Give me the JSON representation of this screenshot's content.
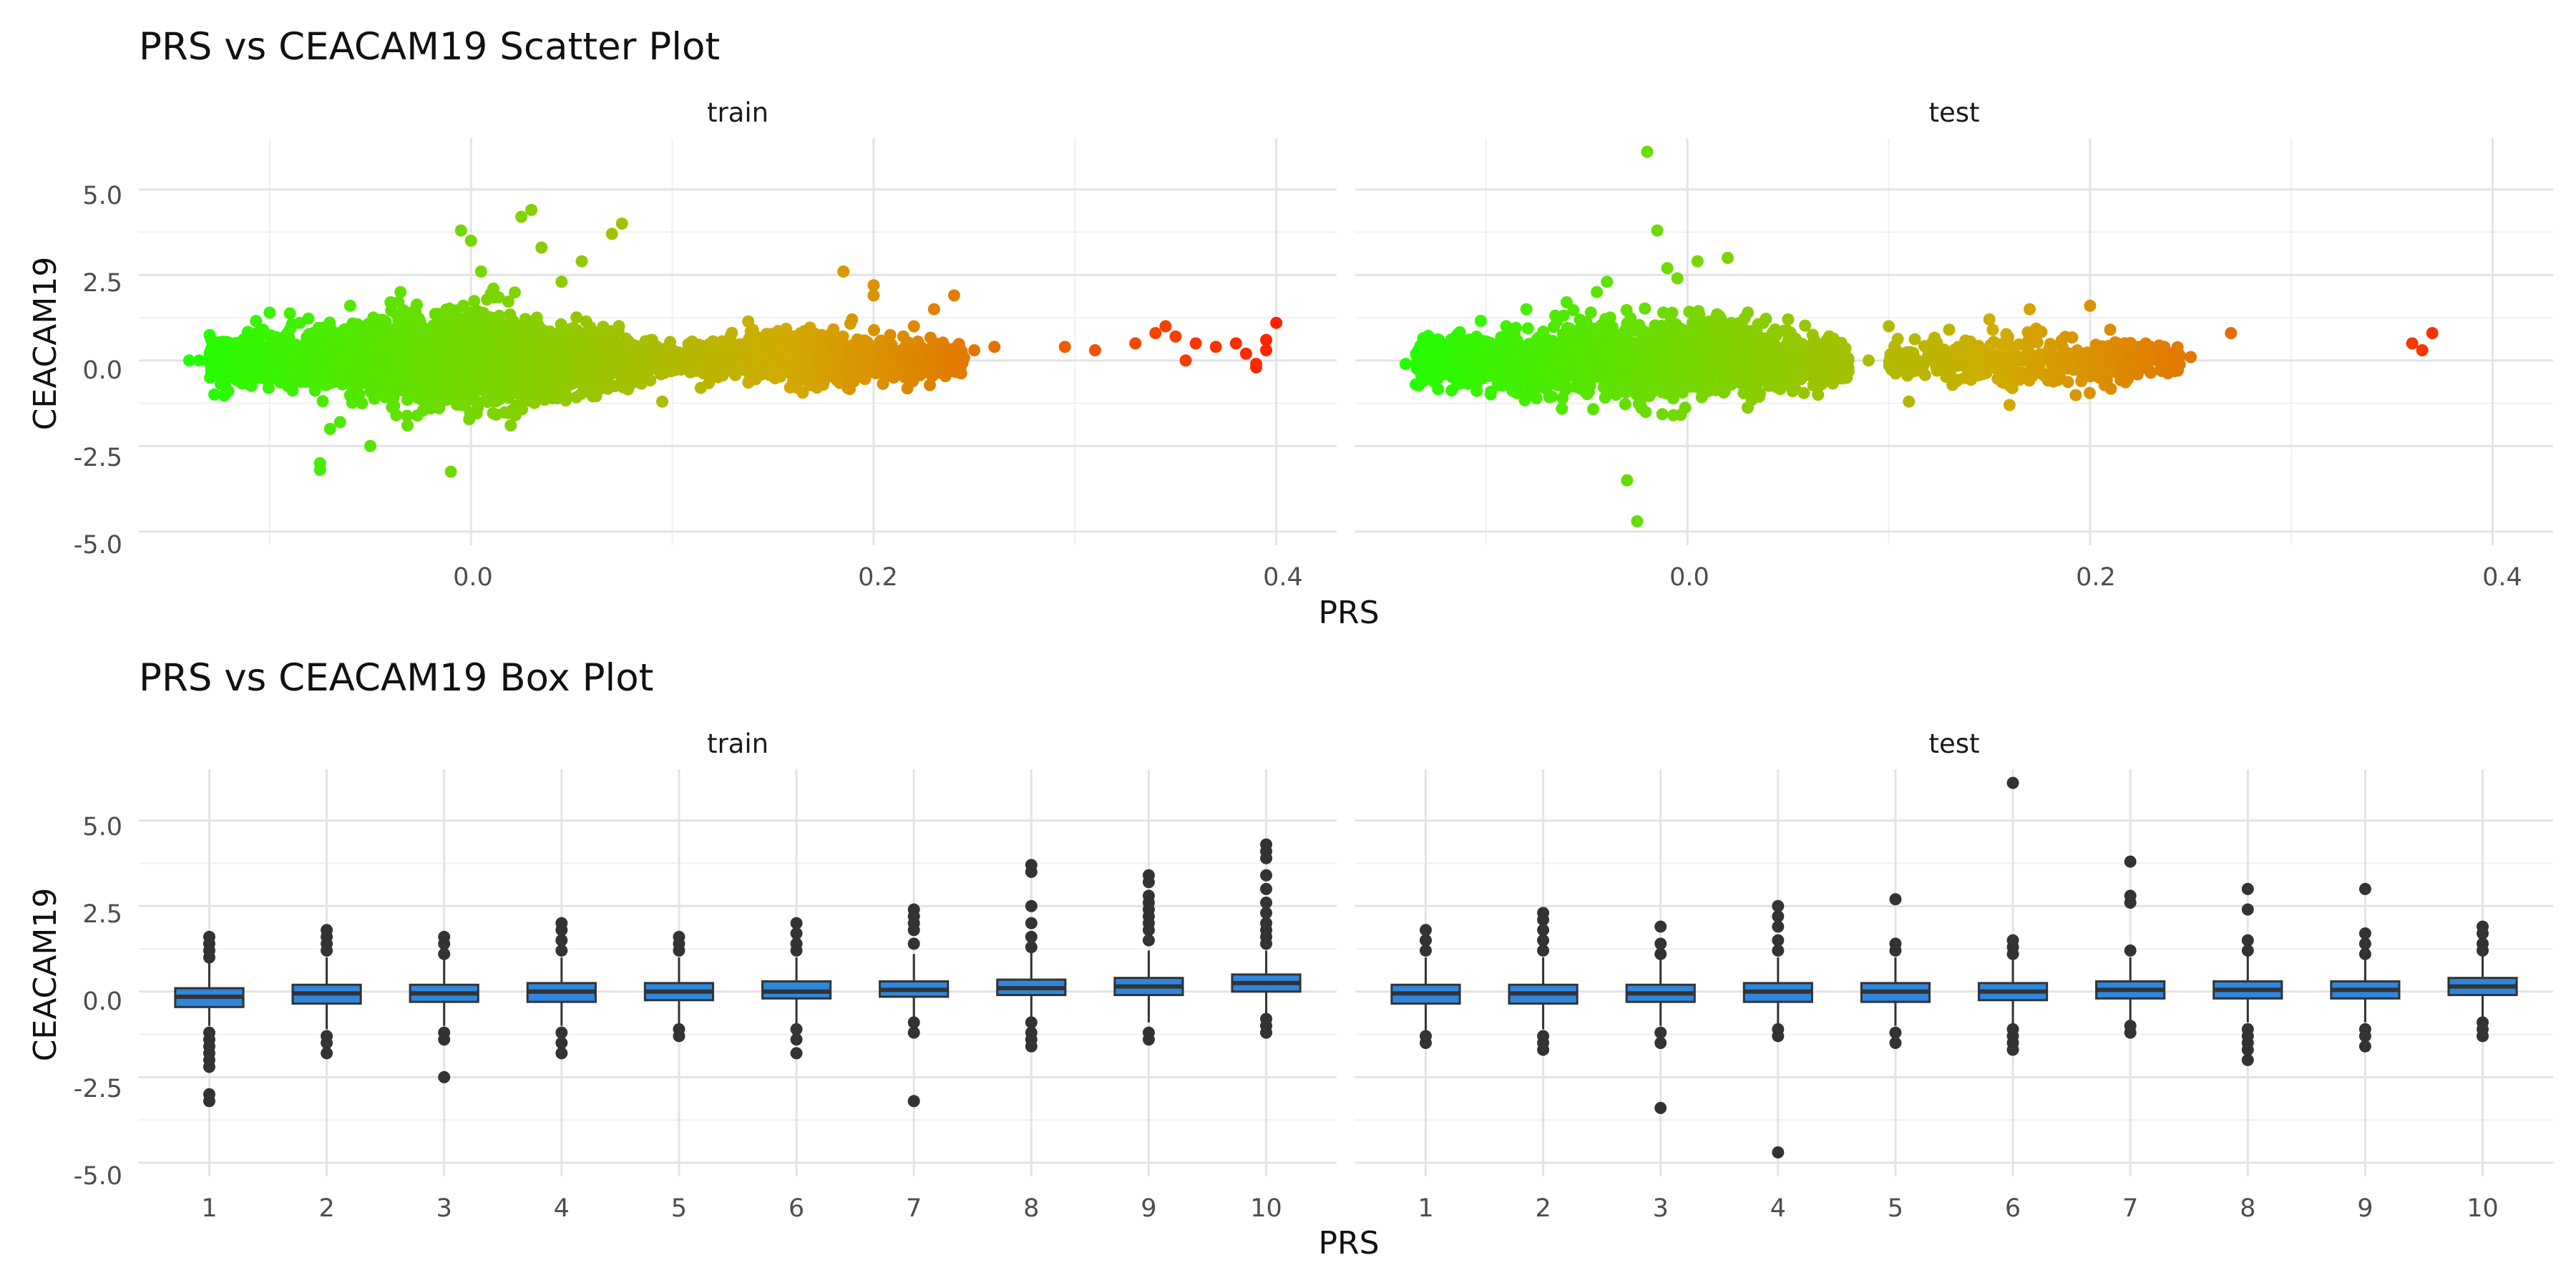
{
  "chart_data": [
    {
      "type": "scatter",
      "title": "PRS vs CEACAM19 Scatter Plot",
      "xlabel": "PRS",
      "ylabel": "CEACAM19",
      "xlim": [
        -0.165,
        0.43
      ],
      "ylim": [
        -5.4,
        6.5
      ],
      "xticks": [
        "0.0",
        "0.2",
        "0.4"
      ],
      "yticks": [
        "5.0",
        "2.5",
        "0.0",
        "-2.5",
        "-5.0"
      ],
      "grid": true,
      "color_scale": {
        "low": "#22ff00",
        "high": "#ff2200"
      },
      "facets": [
        {
          "label": "train",
          "points": [
            [
              -0.14,
              0.0
            ],
            [
              -0.135,
              0.0
            ],
            [
              -0.12,
              -0.5
            ],
            [
              -0.115,
              -0.2
            ],
            [
              -0.1,
              1.4
            ],
            [
              -0.09,
              0.9
            ],
            [
              -0.085,
              1.1
            ],
            [
              -0.075,
              -3.0
            ],
            [
              -0.075,
              -3.2
            ],
            [
              -0.07,
              -2.0
            ],
            [
              -0.065,
              -1.8
            ],
            [
              -0.06,
              1.6
            ],
            [
              -0.05,
              -2.5
            ],
            [
              -0.04,
              1.7
            ],
            [
              -0.035,
              2.0
            ],
            [
              -0.02,
              -1.4
            ],
            [
              -0.01,
              -3.25
            ],
            [
              -0.005,
              3.8
            ],
            [
              0.0,
              3.5
            ],
            [
              0.005,
              2.6
            ],
            [
              0.01,
              1.9
            ],
            [
              0.025,
              4.2
            ],
            [
              0.03,
              4.4
            ],
            [
              0.035,
              3.3
            ],
            [
              0.045,
              2.3
            ],
            [
              0.055,
              2.9
            ],
            [
              0.07,
              3.7
            ],
            [
              0.075,
              4.0
            ],
            [
              0.09,
              0.6
            ],
            [
              0.095,
              -1.2
            ],
            [
              0.1,
              0.2
            ],
            [
              0.12,
              -0.4
            ],
            [
              0.14,
              0.9
            ],
            [
              0.16,
              -0.6
            ],
            [
              0.18,
              0.5
            ],
            [
              0.185,
              2.6
            ],
            [
              0.2,
              2.2
            ],
            [
              0.2,
              1.9
            ],
            [
              0.21,
              -0.5
            ],
            [
              0.22,
              1.0
            ],
            [
              0.23,
              1.5
            ],
            [
              0.24,
              1.9
            ],
            [
              0.25,
              0.3
            ],
            [
              0.26,
              0.4
            ],
            [
              0.295,
              0.4
            ],
            [
              0.31,
              0.3
            ],
            [
              0.33,
              0.5
            ],
            [
              0.34,
              0.8
            ],
            [
              0.345,
              1.0
            ],
            [
              0.35,
              0.7
            ],
            [
              0.355,
              0.0
            ],
            [
              0.36,
              0.5
            ],
            [
              0.37,
              0.4
            ],
            [
              0.38,
              0.5
            ],
            [
              0.385,
              0.2
            ],
            [
              0.39,
              -0.1
            ],
            [
              0.39,
              -0.2
            ],
            [
              0.395,
              0.6
            ],
            [
              0.4,
              1.1
            ],
            [
              0.395,
              0.3
            ]
          ],
          "clusters": [
            {
              "x": [
                -0.13,
                0.09
              ],
              "y": [
                -1.3,
                1.3
              ],
              "n": 2200
            },
            {
              "x": [
                -0.06,
                0.06
              ],
              "y": [
                -1.6,
                1.8
              ],
              "n": 900
            },
            {
              "x": [
                0.09,
                0.245
              ],
              "y": [
                -0.8,
                0.9
              ],
              "n": 1100
            }
          ]
        },
        {
          "label": "test",
          "points": [
            [
              -0.14,
              -0.1
            ],
            [
              -0.135,
              -0.7
            ],
            [
              -0.13,
              -0.3
            ],
            [
              -0.12,
              -0.4
            ],
            [
              -0.09,
              1.0
            ],
            [
              -0.08,
              1.5
            ],
            [
              -0.06,
              1.7
            ],
            [
              -0.045,
              2.0
            ],
            [
              -0.04,
              2.3
            ],
            [
              -0.03,
              -3.5
            ],
            [
              -0.025,
              -4.7
            ],
            [
              -0.02,
              6.1
            ],
            [
              -0.015,
              3.8
            ],
            [
              -0.01,
              2.7
            ],
            [
              -0.005,
              2.4
            ],
            [
              0.005,
              2.9
            ],
            [
              0.02,
              3.0
            ],
            [
              0.03,
              1.4
            ],
            [
              0.05,
              1.2
            ],
            [
              0.07,
              0.3
            ],
            [
              0.09,
              0.0
            ],
            [
              0.1,
              1.0
            ],
            [
              0.11,
              -1.2
            ],
            [
              0.13,
              0.9
            ],
            [
              0.15,
              1.2
            ],
            [
              0.16,
              -1.3
            ],
            [
              0.17,
              1.5
            ],
            [
              0.2,
              1.6
            ],
            [
              0.21,
              0.9
            ],
            [
              0.23,
              0.4
            ],
            [
              0.25,
              0.1
            ],
            [
              0.27,
              0.8
            ],
            [
              0.36,
              0.5
            ],
            [
              0.365,
              0.3
            ],
            [
              0.37,
              0.8
            ]
          ],
          "clusters": [
            {
              "x": [
                -0.135,
                0.08
              ],
              "y": [
                -1.3,
                1.3
              ],
              "n": 1400
            },
            {
              "x": [
                -0.06,
                0.03
              ],
              "y": [
                -1.6,
                1.7
              ],
              "n": 300
            },
            {
              "x": [
                0.1,
                0.245
              ],
              "y": [
                -0.9,
                0.9
              ],
              "n": 450
            }
          ]
        }
      ]
    },
    {
      "type": "box",
      "title": "PRS vs CEACAM19 Box Plot",
      "xlabel": "PRS",
      "ylabel": "CEACAM19",
      "ylim": [
        -5.4,
        6.5
      ],
      "categories": [
        "1",
        "2",
        "3",
        "4",
        "5",
        "6",
        "7",
        "8",
        "9",
        "10"
      ],
      "yticks": [
        "5.0",
        "2.5",
        "0.0",
        "-2.5",
        "-5.0"
      ],
      "grid": true,
      "box_color": "#2e86de",
      "facets": [
        {
          "label": "train",
          "boxes": [
            {
              "q1": -0.45,
              "median": -0.15,
              "q3": 0.1,
              "lower": -1.0,
              "upper": 0.85,
              "outliers": [
                1.6,
                1.4,
                1.2,
                1.0,
                -1.2,
                -1.4,
                -1.6,
                -1.8,
                -2.0,
                -2.2,
                -3.0,
                -3.2
              ]
            },
            {
              "q1": -0.35,
              "median": -0.05,
              "q3": 0.2,
              "lower": -1.1,
              "upper": 1.0,
              "outliers": [
                1.8,
                1.6,
                1.4,
                1.2,
                -1.3,
                -1.5,
                -1.8
              ]
            },
            {
              "q1": -0.3,
              "median": -0.05,
              "q3": 0.2,
              "lower": -1.0,
              "upper": 1.0,
              "outliers": [
                1.6,
                1.4,
                1.1,
                -1.2,
                -1.4,
                -2.5
              ]
            },
            {
              "q1": -0.3,
              "median": 0.0,
              "q3": 0.25,
              "lower": -1.0,
              "upper": 1.0,
              "outliers": [
                2.0,
                1.8,
                1.5,
                1.2,
                -1.2,
                -1.5,
                -1.8
              ]
            },
            {
              "q1": -0.25,
              "median": 0.0,
              "q3": 0.25,
              "lower": -1.0,
              "upper": 1.0,
              "outliers": [
                1.6,
                1.4,
                1.2,
                -1.1,
                -1.3
              ]
            },
            {
              "q1": -0.2,
              "median": 0.0,
              "q3": 0.3,
              "lower": -1.0,
              "upper": 1.0,
              "outliers": [
                2.0,
                1.7,
                1.4,
                1.2,
                -1.1,
                -1.4,
                -1.8
              ]
            },
            {
              "q1": -0.15,
              "median": 0.05,
              "q3": 0.3,
              "lower": -0.9,
              "upper": 1.1,
              "outliers": [
                2.4,
                2.2,
                2.0,
                1.8,
                1.4,
                -0.9,
                -1.2,
                -3.2
              ]
            },
            {
              "q1": -0.1,
              "median": 0.1,
              "q3": 0.35,
              "lower": -0.9,
              "upper": 1.2,
              "outliers": [
                3.7,
                3.5,
                2.5,
                2.0,
                1.6,
                1.3,
                -0.9,
                -1.2,
                -1.4,
                -1.6
              ]
            },
            {
              "q1": -0.1,
              "median": 0.15,
              "q3": 0.4,
              "lower": -0.9,
              "upper": 1.2,
              "outliers": [
                3.4,
                3.2,
                2.8,
                2.6,
                2.4,
                2.2,
                2.0,
                1.8,
                1.5,
                -1.2,
                -1.4
              ]
            },
            {
              "q1": 0.0,
              "median": 0.25,
              "q3": 0.5,
              "lower": -0.7,
              "upper": 1.2,
              "outliers": [
                4.3,
                4.1,
                3.9,
                3.4,
                3.0,
                2.6,
                2.3,
                2.0,
                1.8,
                1.6,
                1.4,
                -0.8,
                -1.0,
                -1.2
              ]
            }
          ]
        },
        {
          "label": "test",
          "boxes": [
            {
              "q1": -0.35,
              "median": -0.05,
              "q3": 0.2,
              "lower": -1.2,
              "upper": 1.0,
              "outliers": [
                1.8,
                1.5,
                1.2,
                -1.3,
                -1.5
              ]
            },
            {
              "q1": -0.35,
              "median": -0.05,
              "q3": 0.2,
              "lower": -1.1,
              "upper": 1.0,
              "outliers": [
                2.3,
                2.1,
                1.8,
                1.5,
                1.2,
                -1.3,
                -1.5,
                -1.7
              ]
            },
            {
              "q1": -0.3,
              "median": -0.05,
              "q3": 0.2,
              "lower": -1.0,
              "upper": 1.0,
              "outliers": [
                1.9,
                1.4,
                1.1,
                -1.2,
                -1.5,
                -3.4
              ]
            },
            {
              "q1": -0.3,
              "median": 0.0,
              "q3": 0.25,
              "lower": -1.0,
              "upper": 1.0,
              "outliers": [
                2.5,
                2.2,
                1.9,
                1.5,
                1.2,
                -1.1,
                -1.3,
                -4.7
              ]
            },
            {
              "q1": -0.3,
              "median": 0.0,
              "q3": 0.25,
              "lower": -1.0,
              "upper": 1.0,
              "outliers": [
                2.7,
                1.4,
                1.2,
                -1.2,
                -1.5
              ]
            },
            {
              "q1": -0.25,
              "median": 0.0,
              "q3": 0.25,
              "lower": -1.0,
              "upper": 1.0,
              "outliers": [
                6.1,
                1.5,
                1.3,
                1.1,
                -1.1,
                -1.3,
                -1.5,
                -1.7
              ]
            },
            {
              "q1": -0.2,
              "median": 0.05,
              "q3": 0.3,
              "lower": -0.9,
              "upper": 1.0,
              "outliers": [
                3.8,
                2.8,
                2.6,
                1.2,
                -1.0,
                -1.2
              ]
            },
            {
              "q1": -0.2,
              "median": 0.05,
              "q3": 0.3,
              "lower": -0.9,
              "upper": 1.1,
              "outliers": [
                3.0,
                2.4,
                1.5,
                1.2,
                -1.1,
                -1.3,
                -1.5,
                -1.7,
                -2.0
              ]
            },
            {
              "q1": -0.2,
              "median": 0.05,
              "q3": 0.3,
              "lower": -0.9,
              "upper": 1.0,
              "outliers": [
                3.0,
                1.7,
                1.4,
                1.1,
                -1.1,
                -1.3,
                -1.6
              ]
            },
            {
              "q1": -0.1,
              "median": 0.15,
              "q3": 0.4,
              "lower": -0.8,
              "upper": 1.1,
              "outliers": [
                1.9,
                1.7,
                1.4,
                1.2,
                -0.9,
                -1.1,
                -1.3
              ]
            }
          ]
        }
      ]
    }
  ]
}
